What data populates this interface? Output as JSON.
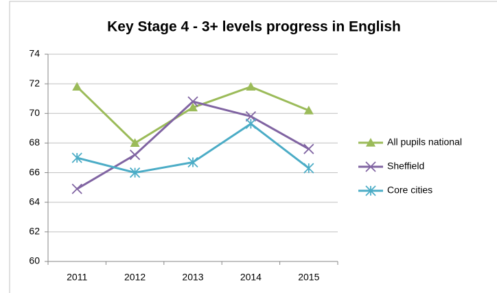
{
  "chart_data": {
    "type": "line",
    "title": "Key Stage 4 - 3+ levels progress in English",
    "categories": [
      "2011",
      "2012",
      "2013",
      "2014",
      "2015"
    ],
    "series": [
      {
        "name": "All pupils national",
        "color": "#9bbb59",
        "marker": "triangle",
        "values": [
          71.8,
          68.0,
          70.4,
          71.8,
          70.2
        ]
      },
      {
        "name": "Sheffield",
        "color": "#8064a2",
        "marker": "x",
        "values": [
          64.9,
          67.2,
          70.8,
          69.8,
          67.6
        ]
      },
      {
        "name": "Core cities",
        "color": "#4bacc6",
        "marker": "asterisk",
        "values": [
          67.0,
          66.0,
          66.7,
          69.3,
          66.3
        ]
      }
    ],
    "ylim": [
      60,
      74
    ],
    "yticks": [
      60,
      62,
      64,
      66,
      68,
      70,
      72,
      74
    ],
    "grid": true,
    "legend": "right"
  }
}
